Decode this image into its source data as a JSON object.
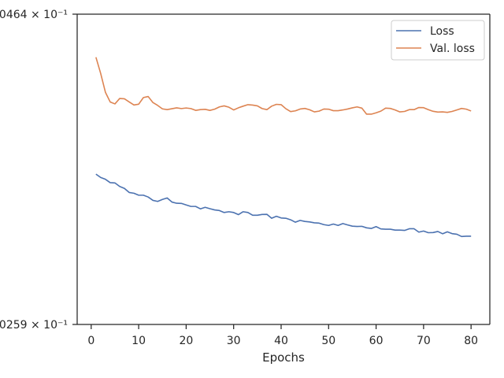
{
  "chart_data": {
    "type": "line",
    "title": "",
    "xlabel": "Epochs",
    "ylabel": "",
    "yscale": "log",
    "xlim": [
      -2.95,
      83.95
    ],
    "ylim": [
      0.10259,
      0.10464
    ],
    "y_tick_labels": [
      "0259 × 10⁻¹",
      "0464 × 10⁻¹"
    ],
    "x_ticks": [
      0,
      10,
      20,
      30,
      40,
      50,
      60,
      70,
      80
    ],
    "grid": false,
    "legend_position": "top-right",
    "x": [
      1,
      2,
      3,
      4,
      5,
      6,
      7,
      8,
      9,
      10,
      11,
      12,
      13,
      14,
      15,
      16,
      17,
      18,
      19,
      20,
      21,
      22,
      23,
      24,
      25,
      26,
      27,
      28,
      29,
      30,
      31,
      32,
      33,
      34,
      35,
      36,
      37,
      38,
      39,
      40,
      41,
      42,
      43,
      44,
      45,
      46,
      47,
      48,
      49,
      50,
      51,
      52,
      53,
      54,
      55,
      56,
      57,
      58,
      59,
      60,
      61,
      62,
      63,
      64,
      65,
      66,
      67,
      68,
      69,
      70,
      71,
      72,
      73,
      74,
      75,
      76,
      77,
      78,
      79,
      80
    ],
    "series": [
      {
        "name": "Loss",
        "color": "#4c72b0",
        "values": [
          0.103578,
          0.103556,
          0.103544,
          0.103522,
          0.10352,
          0.103497,
          0.103484,
          0.103457,
          0.103452,
          0.103439,
          0.103439,
          0.103427,
          0.103405,
          0.103398,
          0.103411,
          0.103421,
          0.103394,
          0.103386,
          0.103385,
          0.103375,
          0.103365,
          0.103365,
          0.103349,
          0.103359,
          0.10335,
          0.103342,
          0.103338,
          0.103325,
          0.10333,
          0.103325,
          0.103311,
          0.10333,
          0.103325,
          0.103307,
          0.103307,
          0.103312,
          0.103313,
          0.103287,
          0.1033,
          0.103289,
          0.103287,
          0.103277,
          0.103261,
          0.103273,
          0.103266,
          0.103263,
          0.103257,
          0.103255,
          0.103245,
          0.10324,
          0.103249,
          0.10324,
          0.103252,
          0.103243,
          0.103235,
          0.103233,
          0.103234,
          0.103224,
          0.10322,
          0.103232,
          0.103217,
          0.103215,
          0.103215,
          0.103209,
          0.103209,
          0.103207,
          0.103218,
          0.103218,
          0.103196,
          0.103203,
          0.103192,
          0.103193,
          0.1032,
          0.103185,
          0.103198,
          0.103186,
          0.103182,
          0.103167,
          0.103169,
          0.103169
        ]
      },
      {
        "name": "Val. loss",
        "color": "#dd8452",
        "values": [
          0.104353,
          0.104245,
          0.10412,
          0.104056,
          0.104043,
          0.104079,
          0.104077,
          0.104056,
          0.104036,
          0.104041,
          0.104085,
          0.104092,
          0.104052,
          0.104033,
          0.10401,
          0.104005,
          0.104011,
          0.104017,
          0.104012,
          0.104016,
          0.104012,
          0.104,
          0.104005,
          0.104007,
          0.104,
          0.104008,
          0.104023,
          0.10403,
          0.104021,
          0.104003,
          0.104017,
          0.104028,
          0.104038,
          0.104035,
          0.10403,
          0.104012,
          0.104005,
          0.104028,
          0.10404,
          0.104038,
          0.104011,
          0.103992,
          0.103997,
          0.104009,
          0.104013,
          0.104004,
          0.10399,
          0.103995,
          0.104009,
          0.104008,
          0.103998,
          0.103998,
          0.104003,
          0.104009,
          0.104017,
          0.104023,
          0.104015,
          0.103975,
          0.103975,
          0.103984,
          0.103995,
          0.104015,
          0.104013,
          0.104003,
          0.10399,
          0.103993,
          0.104005,
          0.104005,
          0.104019,
          0.104018,
          0.104005,
          0.103994,
          0.103989,
          0.10399,
          0.103987,
          0.103993,
          0.104003,
          0.104013,
          0.104008,
          0.103996
        ]
      }
    ]
  }
}
